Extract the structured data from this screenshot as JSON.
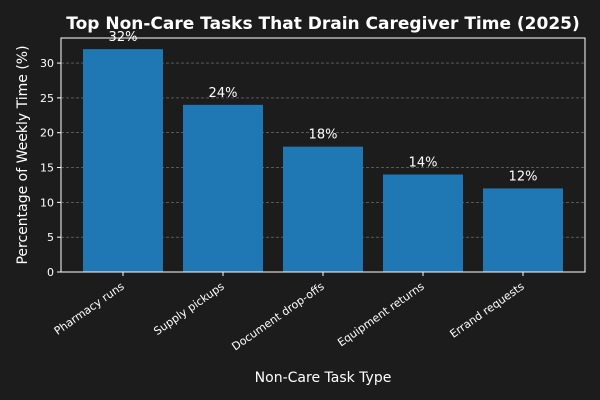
{
  "chart_data": {
    "type": "bar",
    "title": "Top Non-Care Tasks That Drain Caregiver Time (2025)",
    "x_label": "Non-Care Task Type",
    "y_label": "Percentage of Weekly Time (%)",
    "categories": [
      "Pharmacy runs",
      "Supply pickups",
      "Document drop-offs",
      "Equipment returns",
      "Errand requests"
    ],
    "values": [
      32,
      24,
      18,
      14,
      12
    ],
    "value_labels": [
      "32%",
      "24%",
      "18%",
      "14%",
      "12%"
    ],
    "color": "#1f77b4",
    "ylim": [
      0,
      33.6
    ],
    "yticks": [
      0,
      5,
      10,
      15,
      20,
      25,
      30
    ],
    "grid": true
  }
}
